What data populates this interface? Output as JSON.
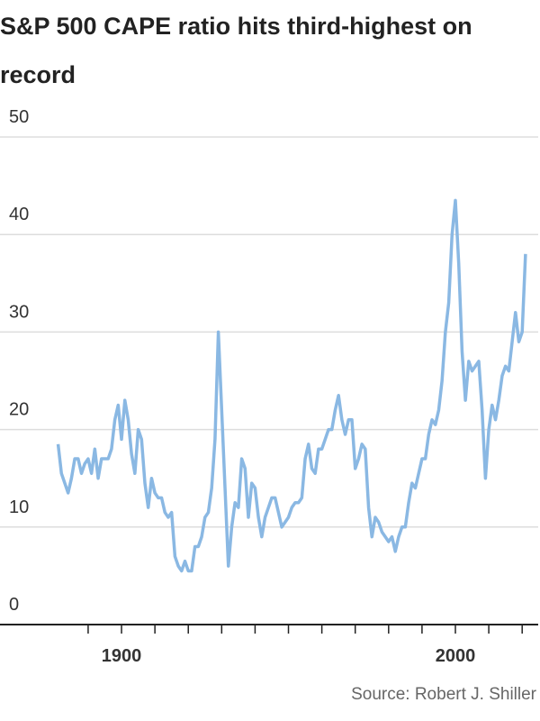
{
  "chart_data": {
    "type": "line",
    "title": "S&P 500 CAPE ratio hits third-highest on record",
    "source": "Source: Robert J. Shiller",
    "x": [
      1881,
      1882,
      1883,
      1884,
      1885,
      1886,
      1887,
      1888,
      1889,
      1890,
      1891,
      1892,
      1893,
      1894,
      1895,
      1896,
      1897,
      1898,
      1899,
      1900,
      1901,
      1902,
      1903,
      1904,
      1905,
      1906,
      1907,
      1908,
      1909,
      1910,
      1911,
      1912,
      1913,
      1914,
      1915,
      1916,
      1917,
      1918,
      1919,
      1920,
      1921,
      1922,
      1923,
      1924,
      1925,
      1926,
      1927,
      1928,
      1929,
      1930,
      1931,
      1932,
      1933,
      1934,
      1935,
      1936,
      1937,
      1938,
      1939,
      1940,
      1941,
      1942,
      1943,
      1944,
      1945,
      1946,
      1947,
      1948,
      1949,
      1950,
      1951,
      1952,
      1953,
      1954,
      1955,
      1956,
      1957,
      1958,
      1959,
      1960,
      1961,
      1962,
      1963,
      1964,
      1965,
      1966,
      1967,
      1968,
      1969,
      1970,
      1971,
      1972,
      1973,
      1974,
      1975,
      1976,
      1977,
      1978,
      1979,
      1980,
      1981,
      1982,
      1983,
      1984,
      1985,
      1986,
      1987,
      1988,
      1989,
      1990,
      1991,
      1992,
      1993,
      1994,
      1995,
      1996,
      1997,
      1998,
      1999,
      2000,
      2001,
      2002,
      2003,
      2004,
      2005,
      2006,
      2007,
      2008,
      2009,
      2010,
      2011,
      2012,
      2013,
      2014,
      2015,
      2016,
      2017,
      2018,
      2019,
      2020,
      2021
    ],
    "series": [
      {
        "name": "CAPE ratio",
        "color": "#8ab8e3",
        "values": [
          18.5,
          15.5,
          14.5,
          13.5,
          15,
          17,
          17,
          15.5,
          16.5,
          17,
          15.5,
          18,
          15,
          17,
          17,
          17,
          18,
          21,
          22.5,
          19,
          23,
          21,
          17.5,
          15.5,
          20,
          19,
          14.5,
          12,
          15,
          13.5,
          13,
          13,
          11.5,
          11,
          11.5,
          7,
          6,
          5.5,
          6.5,
          5.5,
          5.5,
          8,
          8,
          9,
          11,
          11.5,
          14,
          19,
          30,
          22,
          14,
          6,
          10,
          12.5,
          12,
          17,
          16,
          11,
          14.5,
          14,
          11,
          9,
          11,
          12,
          13,
          13,
          11.5,
          10,
          10.5,
          11,
          12,
          12.5,
          12.5,
          13,
          17,
          18.5,
          16,
          15.5,
          18,
          18,
          19,
          20,
          20,
          22,
          23.5,
          21,
          19.5,
          21,
          21,
          16,
          17,
          18.5,
          18,
          12,
          9,
          11,
          10.5,
          9.5,
          9,
          8.5,
          9,
          7.5,
          9,
          10,
          10,
          12.5,
          14.5,
          14,
          15.5,
          17,
          17,
          19.5,
          21,
          20.5,
          22,
          25,
          30,
          33,
          40,
          43.5,
          37,
          28,
          23,
          27,
          26,
          26.5,
          27,
          22,
          15,
          20,
          22.5,
          21,
          23,
          25.5,
          26.5,
          26,
          29,
          32,
          29,
          30,
          38
        ]
      }
    ],
    "xlim": [
      1863.6,
      2024.8
    ],
    "xticks": [
      1900,
      2000
    ],
    "xminor_ticks": [
      1890,
      1910,
      1920,
      1930,
      1940,
      1950,
      1960,
      1970,
      1980,
      1990,
      2010,
      2020
    ],
    "ylim": [
      0,
      50
    ],
    "yticks": [
      0,
      10,
      20,
      30,
      40,
      50
    ],
    "grid": true
  }
}
